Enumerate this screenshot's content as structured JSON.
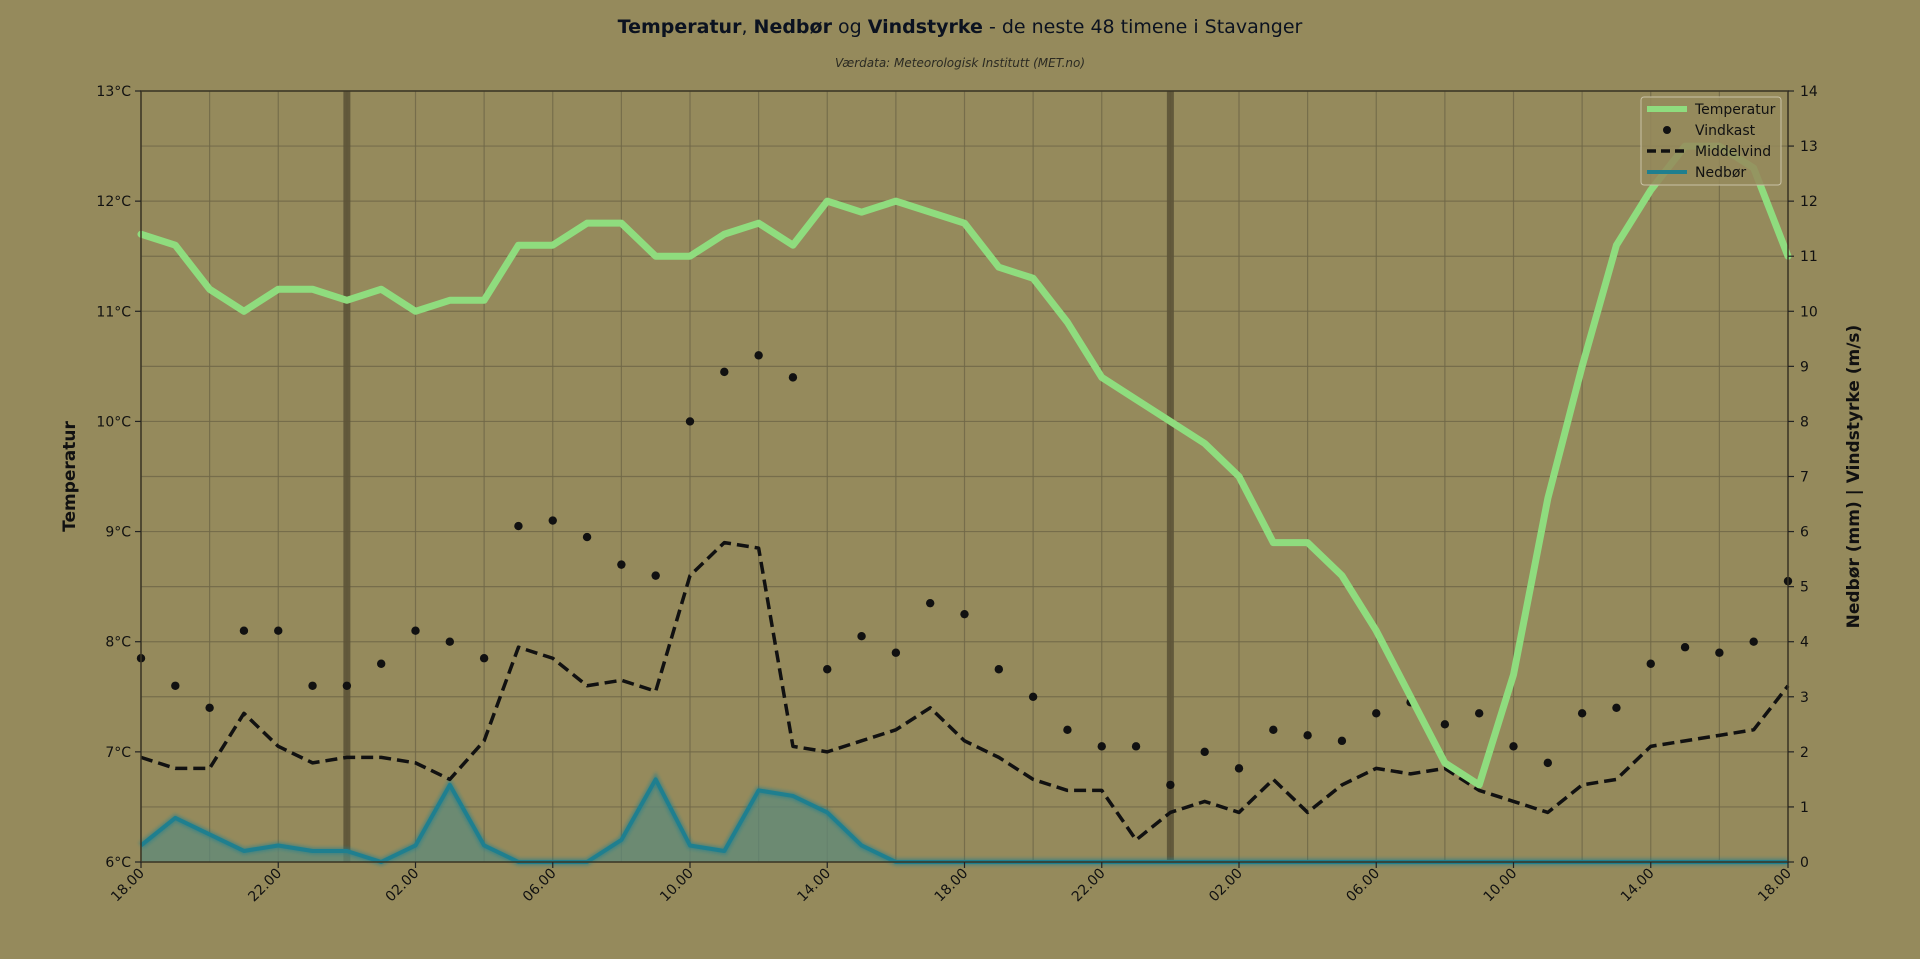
{
  "page": {
    "title_parts": {
      "temp": "Temperatur",
      "sep1": ", ",
      "precip": "Nedbør",
      "sep2": " og ",
      "wind": "Vindstyrke",
      "rest": " - de neste 48 timene i Stavanger"
    },
    "subtitle": "Værdata: Meteorologisk Institutt (MET.no)"
  },
  "colors": {
    "background": "#958a5c",
    "temperature": "#8fdc7e",
    "precipitation": "#1f7f8f",
    "precip_fill": "#5f8a7a",
    "gusts": "#111111",
    "mean_wind": "#111111",
    "grid": "#6f6747",
    "midnight": "#5d5438"
  },
  "chart_data": {
    "type": "line",
    "x_tick_labels": [
      "18.00",
      "22.00",
      "02.00",
      "06.00",
      "10.00",
      "14.00",
      "18.00",
      "22.00",
      "02.00",
      "06.00",
      "10.00",
      "14.00",
      "18.00"
    ],
    "x_hours_count": 49,
    "midnight_hours": [
      6,
      30
    ],
    "y_left": {
      "label": "Temperatur",
      "range": [
        6,
        13
      ],
      "ticks": [
        "6°C",
        "7°C",
        "8°C",
        "9°C",
        "10°C",
        "11°C",
        "12°C",
        "13°C"
      ]
    },
    "y_right": {
      "label": "Nedbør (mm)  |  Vindstyrke (m/s)",
      "range": [
        0,
        14
      ],
      "ticks": [
        "0",
        "1",
        "2",
        "3",
        "4",
        "5",
        "6",
        "7",
        "8",
        "9",
        "10",
        "11",
        "12",
        "13",
        "14"
      ]
    },
    "legend": {
      "placement": "top-right",
      "entries": [
        "Temperatur",
        "Vindkast",
        "Middelvind",
        "Nedbør"
      ]
    },
    "series": [
      {
        "name": "Temperatur",
        "axis": "left",
        "style": "line",
        "values": [
          11.7,
          11.6,
          11.2,
          11.0,
          11.2,
          11.2,
          11.1,
          11.2,
          11.0,
          11.1,
          11.1,
          11.6,
          11.6,
          11.8,
          11.8,
          11.5,
          11.5,
          11.7,
          11.8,
          11.6,
          12.0,
          11.9,
          12.0,
          11.9,
          11.8,
          11.4,
          11.3,
          10.9,
          10.4,
          10.2,
          10.0,
          9.8,
          9.5,
          8.9,
          8.9,
          8.6,
          8.1,
          7.5,
          6.9,
          6.7,
          7.7,
          9.3,
          10.5,
          11.6,
          12.1,
          12.5,
          12.5,
          12.3,
          11.5
        ]
      },
      {
        "name": "Vindkast",
        "axis": "right",
        "style": "dots",
        "values": [
          3.7,
          3.2,
          2.8,
          4.2,
          4.2,
          3.2,
          3.2,
          3.6,
          4.2,
          4.0,
          3.7,
          6.1,
          6.2,
          5.9,
          5.4,
          5.2,
          8.0,
          8.9,
          9.2,
          8.8,
          3.5,
          4.1,
          3.8,
          4.7,
          4.5,
          3.5,
          3.0,
          2.4,
          2.1,
          2.1,
          1.4,
          2.0,
          1.7,
          2.4,
          2.3,
          2.2,
          2.7,
          2.9,
          2.5,
          2.7,
          2.1,
          1.8,
          2.7,
          2.8,
          3.6,
          3.9,
          3.8,
          4.0,
          5.1
        ]
      },
      {
        "name": "Middelvind",
        "axis": "right",
        "style": "dashed",
        "values": [
          1.9,
          1.7,
          1.7,
          2.7,
          2.1,
          1.8,
          1.9,
          1.9,
          1.8,
          1.5,
          2.2,
          3.9,
          3.7,
          3.2,
          3.3,
          3.1,
          5.2,
          5.8,
          5.7,
          2.1,
          2.0,
          2.2,
          2.4,
          2.8,
          2.2,
          1.9,
          1.5,
          1.3,
          1.3,
          0.4,
          0.9,
          1.1,
          0.9,
          1.5,
          0.9,
          1.4,
          1.7,
          1.6,
          1.7,
          1.3,
          1.1,
          0.9,
          1.4,
          1.5,
          2.1,
          2.2,
          2.3,
          2.4,
          3.2
        ]
      },
      {
        "name": "Nedbør",
        "axis": "right",
        "style": "area",
        "values": [
          0.3,
          0.8,
          0.5,
          0.2,
          0.3,
          0.2,
          0.2,
          0.0,
          0.3,
          1.4,
          0.3,
          0.0,
          0.0,
          0.0,
          0.4,
          1.5,
          0.3,
          0.2,
          1.3,
          1.2,
          0.9,
          0.3,
          0.0,
          0.0,
          0.0,
          0.0,
          0.0,
          0.0,
          0.0,
          0.0,
          0.0,
          0.0,
          0.0,
          0.0,
          0.0,
          0.0,
          0.0,
          0.0,
          0.0,
          0.0,
          0.0,
          0.0,
          0.0,
          0.0,
          0.0,
          0.0,
          0.0,
          0.0,
          0.0
        ]
      }
    ]
  }
}
